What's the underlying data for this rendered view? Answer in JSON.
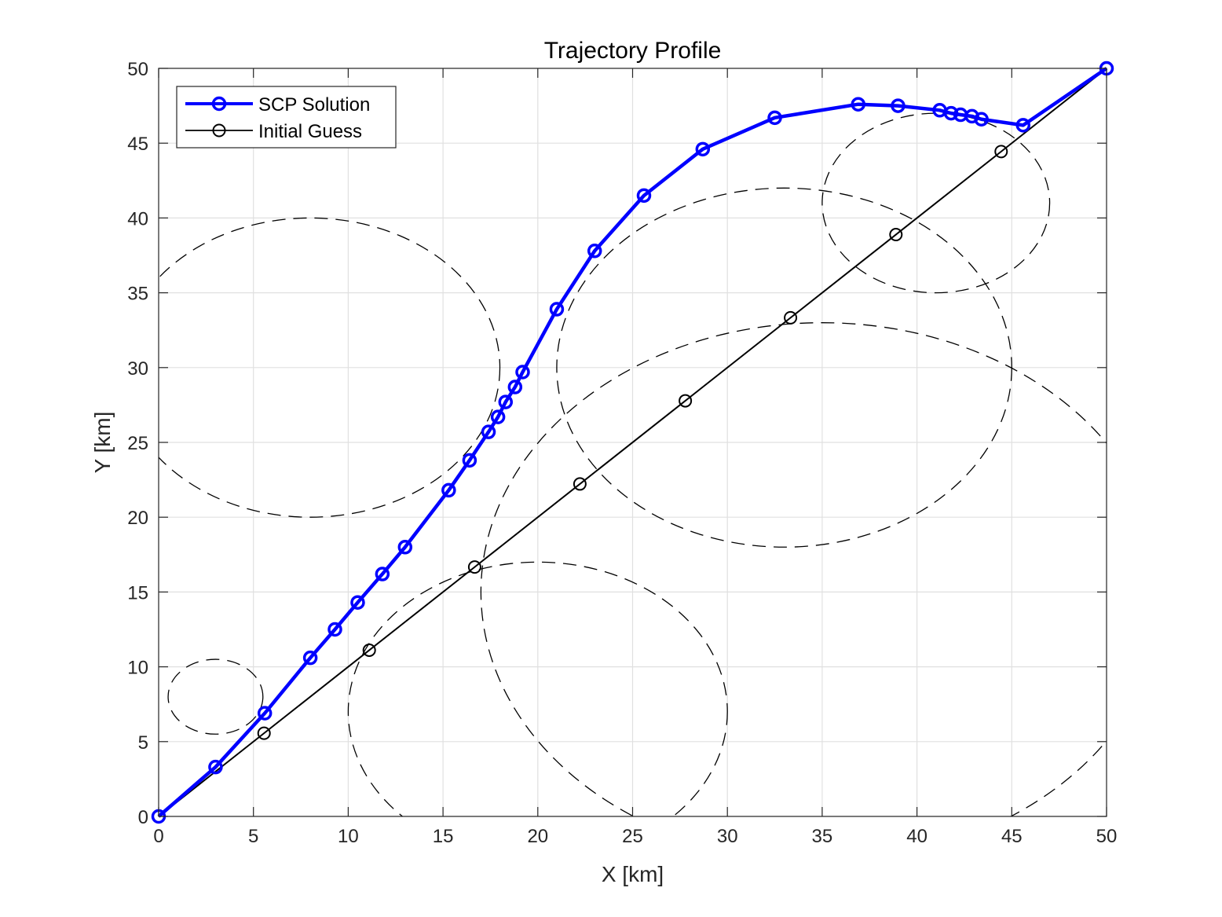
{
  "chart_data": {
    "type": "line",
    "title": "Trajectory Profile",
    "xlabel": "X [km]",
    "ylabel": "Y [km]",
    "xlim": [
      0,
      50
    ],
    "ylim": [
      0,
      50
    ],
    "xticks": [
      0,
      5,
      10,
      15,
      20,
      25,
      30,
      35,
      40,
      45,
      50
    ],
    "yticks": [
      0,
      5,
      10,
      15,
      20,
      25,
      30,
      35,
      40,
      45,
      50
    ],
    "grid": true,
    "legend_position": "top-left",
    "series": [
      {
        "name": "SCP Solution",
        "color": "#0000ff",
        "marker": "circle",
        "x": [
          0,
          3.0,
          5.6,
          8.0,
          9.3,
          10.5,
          11.8,
          13.0,
          15.3,
          16.4,
          17.4,
          17.9,
          18.3,
          18.8,
          19.2,
          21.0,
          23.0,
          25.6,
          28.7,
          32.5,
          36.9,
          39.0,
          41.2,
          41.8,
          42.3,
          42.9,
          43.4,
          45.6,
          50.0
        ],
        "y": [
          0,
          3.3,
          6.9,
          10.6,
          12.5,
          14.3,
          16.2,
          18.0,
          21.8,
          23.8,
          25.7,
          26.7,
          27.7,
          28.7,
          29.7,
          33.9,
          37.8,
          41.5,
          44.6,
          46.7,
          47.6,
          47.5,
          47.2,
          47.0,
          46.9,
          46.8,
          46.6,
          46.2,
          50.0
        ]
      },
      {
        "name": "Initial Guess",
        "color": "#000000",
        "marker": "circle",
        "x": [
          0,
          5.56,
          11.11,
          16.67,
          22.22,
          27.78,
          33.33,
          38.89,
          44.44,
          50.0
        ],
        "y": [
          0,
          5.56,
          11.11,
          16.67,
          22.22,
          27.78,
          33.33,
          38.89,
          44.44,
          50.0
        ]
      }
    ],
    "obstacles": [
      {
        "cx": 3.0,
        "cy": 8.0,
        "rx": 2.5,
        "ry": 2.5
      },
      {
        "cx": 8.0,
        "cy": 30.0,
        "rx": 10.0,
        "ry": 10.0
      },
      {
        "cx": 20.0,
        "cy": 7.0,
        "rx": 10.0,
        "ry": 10.0
      },
      {
        "cx": 33.0,
        "cy": 30.0,
        "rx": 12.0,
        "ry": 12.0
      },
      {
        "cx": 35.0,
        "cy": 15.0,
        "rx": 18.0,
        "ry": 18.0
      },
      {
        "cx": 41.0,
        "cy": 41.0,
        "rx": 6.0,
        "ry": 6.0
      }
    ]
  }
}
